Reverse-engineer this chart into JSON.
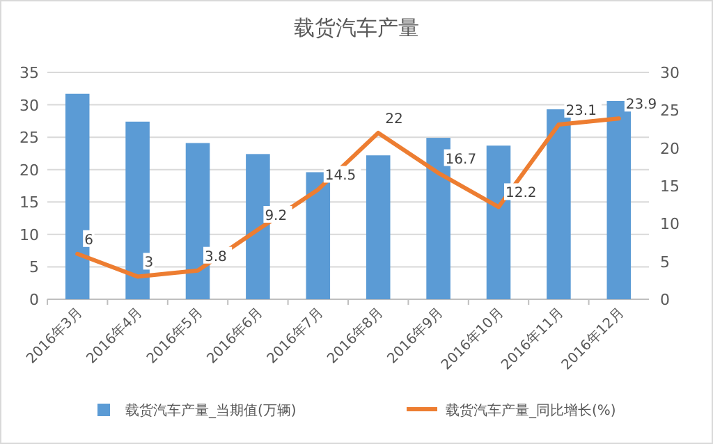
{
  "chart_data": {
    "type": "bar",
    "title": "载货汽车产量",
    "categories": [
      "2016年3月",
      "2016年4月",
      "2016年5月",
      "2016年6月",
      "2016年7月",
      "2016年8月",
      "2016年9月",
      "2016年10月",
      "2016年11月",
      "2016年12月"
    ],
    "series": [
      {
        "name": "载货汽车产量_当期值(万辆)",
        "color": "#5b9bd5",
        "values": [
          31.7,
          27.4,
          24.1,
          22.4,
          19.6,
          22.2,
          24.9,
          23.7,
          29.3,
          30.6
        ]
      },
      {
        "name": "载货汽车产量_同比增长(%)",
        "type": "line",
        "axis": "y2",
        "color": "#ed7d31",
        "values": [
          6,
          3,
          3.8,
          9.2,
          14.5,
          22,
          16.7,
          12.2,
          23.1,
          23.9
        ],
        "value_labels": [
          "6",
          "3",
          "3.8",
          "9.2",
          "14.5",
          "22",
          "16.7",
          "12.2",
          "23.1",
          "23.9"
        ]
      }
    ],
    "ylim": [
      0,
      35
    ],
    "yticks": [
      0,
      5,
      10,
      15,
      20,
      25,
      30,
      35
    ],
    "y2lim": [
      0,
      30
    ],
    "y2ticks": [
      0,
      5,
      10,
      15,
      20,
      25,
      30
    ],
    "grid": "y",
    "legend": "bottom",
    "marker": "none"
  }
}
